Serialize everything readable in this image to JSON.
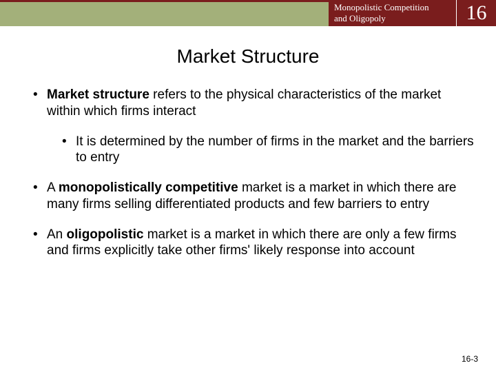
{
  "header": {
    "chapter_title_line1": "Monopolistic Competition",
    "chapter_title_line2": "and Oligopoly",
    "chapter_number": "16",
    "colors": {
      "left_bg": "#a3b07a",
      "dark_bg": "#7a1d1d",
      "header_text": "#ffffff",
      "accent_border": "#7a1d1d"
    }
  },
  "title": "Market Structure",
  "bullets": [
    {
      "level": 1,
      "segments": [
        {
          "text": "Market structure",
          "bold": true
        },
        {
          "text": " refers to the physical characteristics of the market within which firms interact",
          "bold": false
        }
      ]
    },
    {
      "level": 2,
      "segments": [
        {
          "text": "It is determined by the number of firms in the market and the barriers to entry",
          "bold": false
        }
      ]
    },
    {
      "level": 1,
      "segments": [
        {
          "text": "A ",
          "bold": false
        },
        {
          "text": "monopolistically competitive",
          "bold": true
        },
        {
          "text": " market is a market in which there are many firms selling differentiated products and few barriers to entry",
          "bold": false
        }
      ]
    },
    {
      "level": 1,
      "segments": [
        {
          "text": "An ",
          "bold": false
        },
        {
          "text": "oligopolistic",
          "bold": true
        },
        {
          "text": " market is a market in which there are only a few firms and firms explicitly take other firms' likely response into account",
          "bold": false
        }
      ]
    }
  ],
  "footer": "16-3",
  "typography": {
    "title_fontsize": 28,
    "body_fontsize": 19,
    "header_fontsize": 13,
    "chapter_num_fontsize": 30,
    "footer_fontsize": 12
  }
}
